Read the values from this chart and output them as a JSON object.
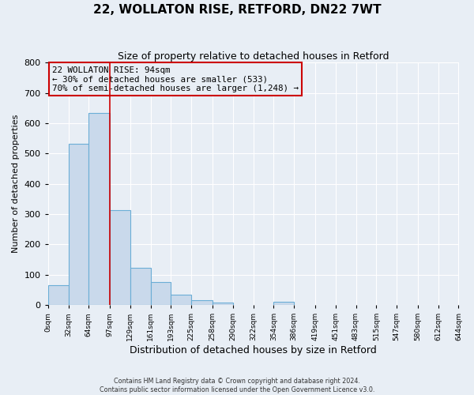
{
  "title": "22, WOLLATON RISE, RETFORD, DN22 7WT",
  "subtitle": "Size of property relative to detached houses in Retford",
  "xlabel": "Distribution of detached houses by size in Retford",
  "ylabel": "Number of detached properties",
  "bin_edges": [
    0,
    32,
    64,
    97,
    129,
    161,
    193,
    225,
    258,
    290,
    322,
    354,
    386,
    419,
    451,
    483,
    515,
    547,
    580,
    612,
    644
  ],
  "bar_heights": [
    65,
    533,
    633,
    313,
    122,
    77,
    33,
    15,
    8,
    0,
    0,
    10,
    0,
    0,
    0,
    0,
    0,
    0,
    0,
    0
  ],
  "bar_color": "#c9d9eb",
  "bar_edge_color": "#6baed6",
  "vline_x": 97,
  "vline_color": "#cc0000",
  "ylim": [
    0,
    800
  ],
  "annotation_line1": "22 WOLLATON RISE: 94sqm",
  "annotation_line2": "← 30% of detached houses are smaller (533)",
  "annotation_line3": "70% of semi-detached houses are larger (1,248) →",
  "annotation_box_edgecolor": "#cc0000",
  "footer_line1": "Contains HM Land Registry data © Crown copyright and database right 2024.",
  "footer_line2": "Contains public sector information licensed under the Open Government Licence v3.0.",
  "x_tick_labels": [
    "0sqm",
    "32sqm",
    "64sqm",
    "97sqm",
    "129sqm",
    "161sqm",
    "193sqm",
    "225sqm",
    "258sqm",
    "290sqm",
    "322sqm",
    "354sqm",
    "386sqm",
    "419sqm",
    "451sqm",
    "483sqm",
    "515sqm",
    "547sqm",
    "580sqm",
    "612sqm",
    "644sqm"
  ],
  "background_color": "#e8eef5",
  "grid_color": "#ffffff",
  "title_fontsize": 11,
  "subtitle_fontsize": 9,
  "xlabel_fontsize": 9,
  "ylabel_fontsize": 8,
  "ytick_labels": [
    0,
    100,
    200,
    300,
    400,
    500,
    600,
    700,
    800
  ]
}
